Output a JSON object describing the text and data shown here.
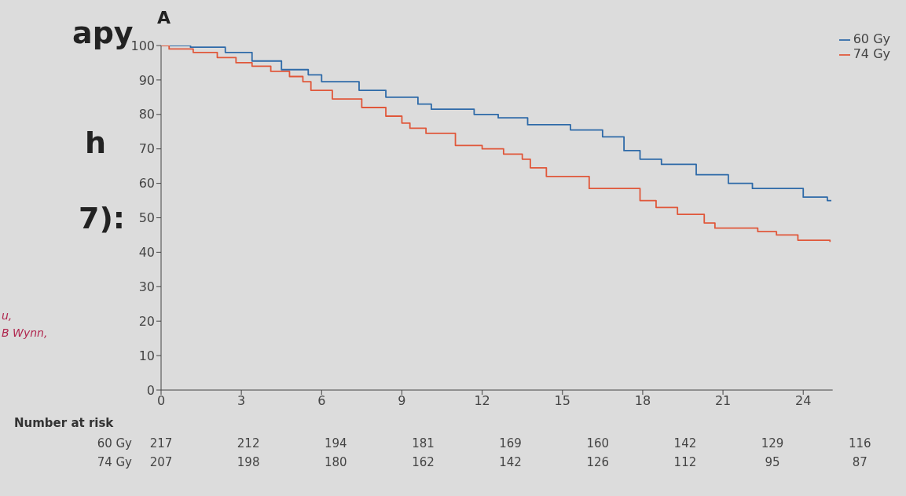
{
  "chart_data": {
    "type": "step",
    "title": "A",
    "xlim": [
      0,
      25.1
    ],
    "xticks": [
      0,
      3,
      6,
      9,
      12,
      15,
      18,
      21,
      24
    ],
    "ylim": [
      0,
      100
    ],
    "yticks": [
      0,
      10,
      20,
      30,
      40,
      50,
      60,
      70,
      80,
      90,
      100
    ],
    "grid": false,
    "legend": "top right",
    "series": [
      {
        "name": "60 Gy",
        "color": "#2e6aa8",
        "x": [
          0,
          1.1,
          2.4,
          3.4,
          4.5,
          5.5,
          6.0,
          7.4,
          8.4,
          9.6,
          10.1,
          11.7,
          12.6,
          13.7,
          15.3,
          16.5,
          17.3,
          17.9,
          18.7,
          20.0,
          21.2,
          22.1,
          24.0,
          24.9,
          25.05
        ],
        "values": [
          100,
          99.5,
          98,
          95.5,
          93,
          91.5,
          89.5,
          87,
          85,
          83,
          81.5,
          80,
          79,
          77,
          75.5,
          73.5,
          69.5,
          67,
          65.5,
          62.5,
          60,
          58.5,
          56,
          55,
          55
        ]
      },
      {
        "name": "74 Gy",
        "color": "#e0573a",
        "x": [
          0,
          0.3,
          1.2,
          2.1,
          2.8,
          3.4,
          4.1,
          4.8,
          5.3,
          5.6,
          6.4,
          7.5,
          8.4,
          9.0,
          9.3,
          9.9,
          11.0,
          12.0,
          12.8,
          13.5,
          13.8,
          14.4,
          16.0,
          17.5,
          17.9,
          18.5,
          19.3,
          20.3,
          20.7,
          22.3,
          23.0,
          23.8,
          25.0
        ],
        "values": [
          100,
          99,
          98,
          96.5,
          95,
          94,
          92.5,
          91,
          89.5,
          87,
          84.5,
          82,
          79.5,
          77.5,
          76,
          74.5,
          71,
          70,
          68.5,
          67,
          64.5,
          62,
          58.5,
          58.5,
          55,
          53,
          51,
          48.5,
          47,
          46,
          45,
          43.5,
          43
        ]
      }
    ],
    "annotations": [
      "apy",
      "h",
      "7):",
      "u,",
      "B Wynn,",
      "Number at risk",
      "60 Gy",
      "74 Gy",
      "217",
      "212",
      "194",
      "181",
      "169",
      "160",
      "142",
      "129",
      "116",
      "207",
      "198",
      "180",
      "162",
      "142",
      "126",
      "112",
      "95",
      "87"
    ]
  }
}
